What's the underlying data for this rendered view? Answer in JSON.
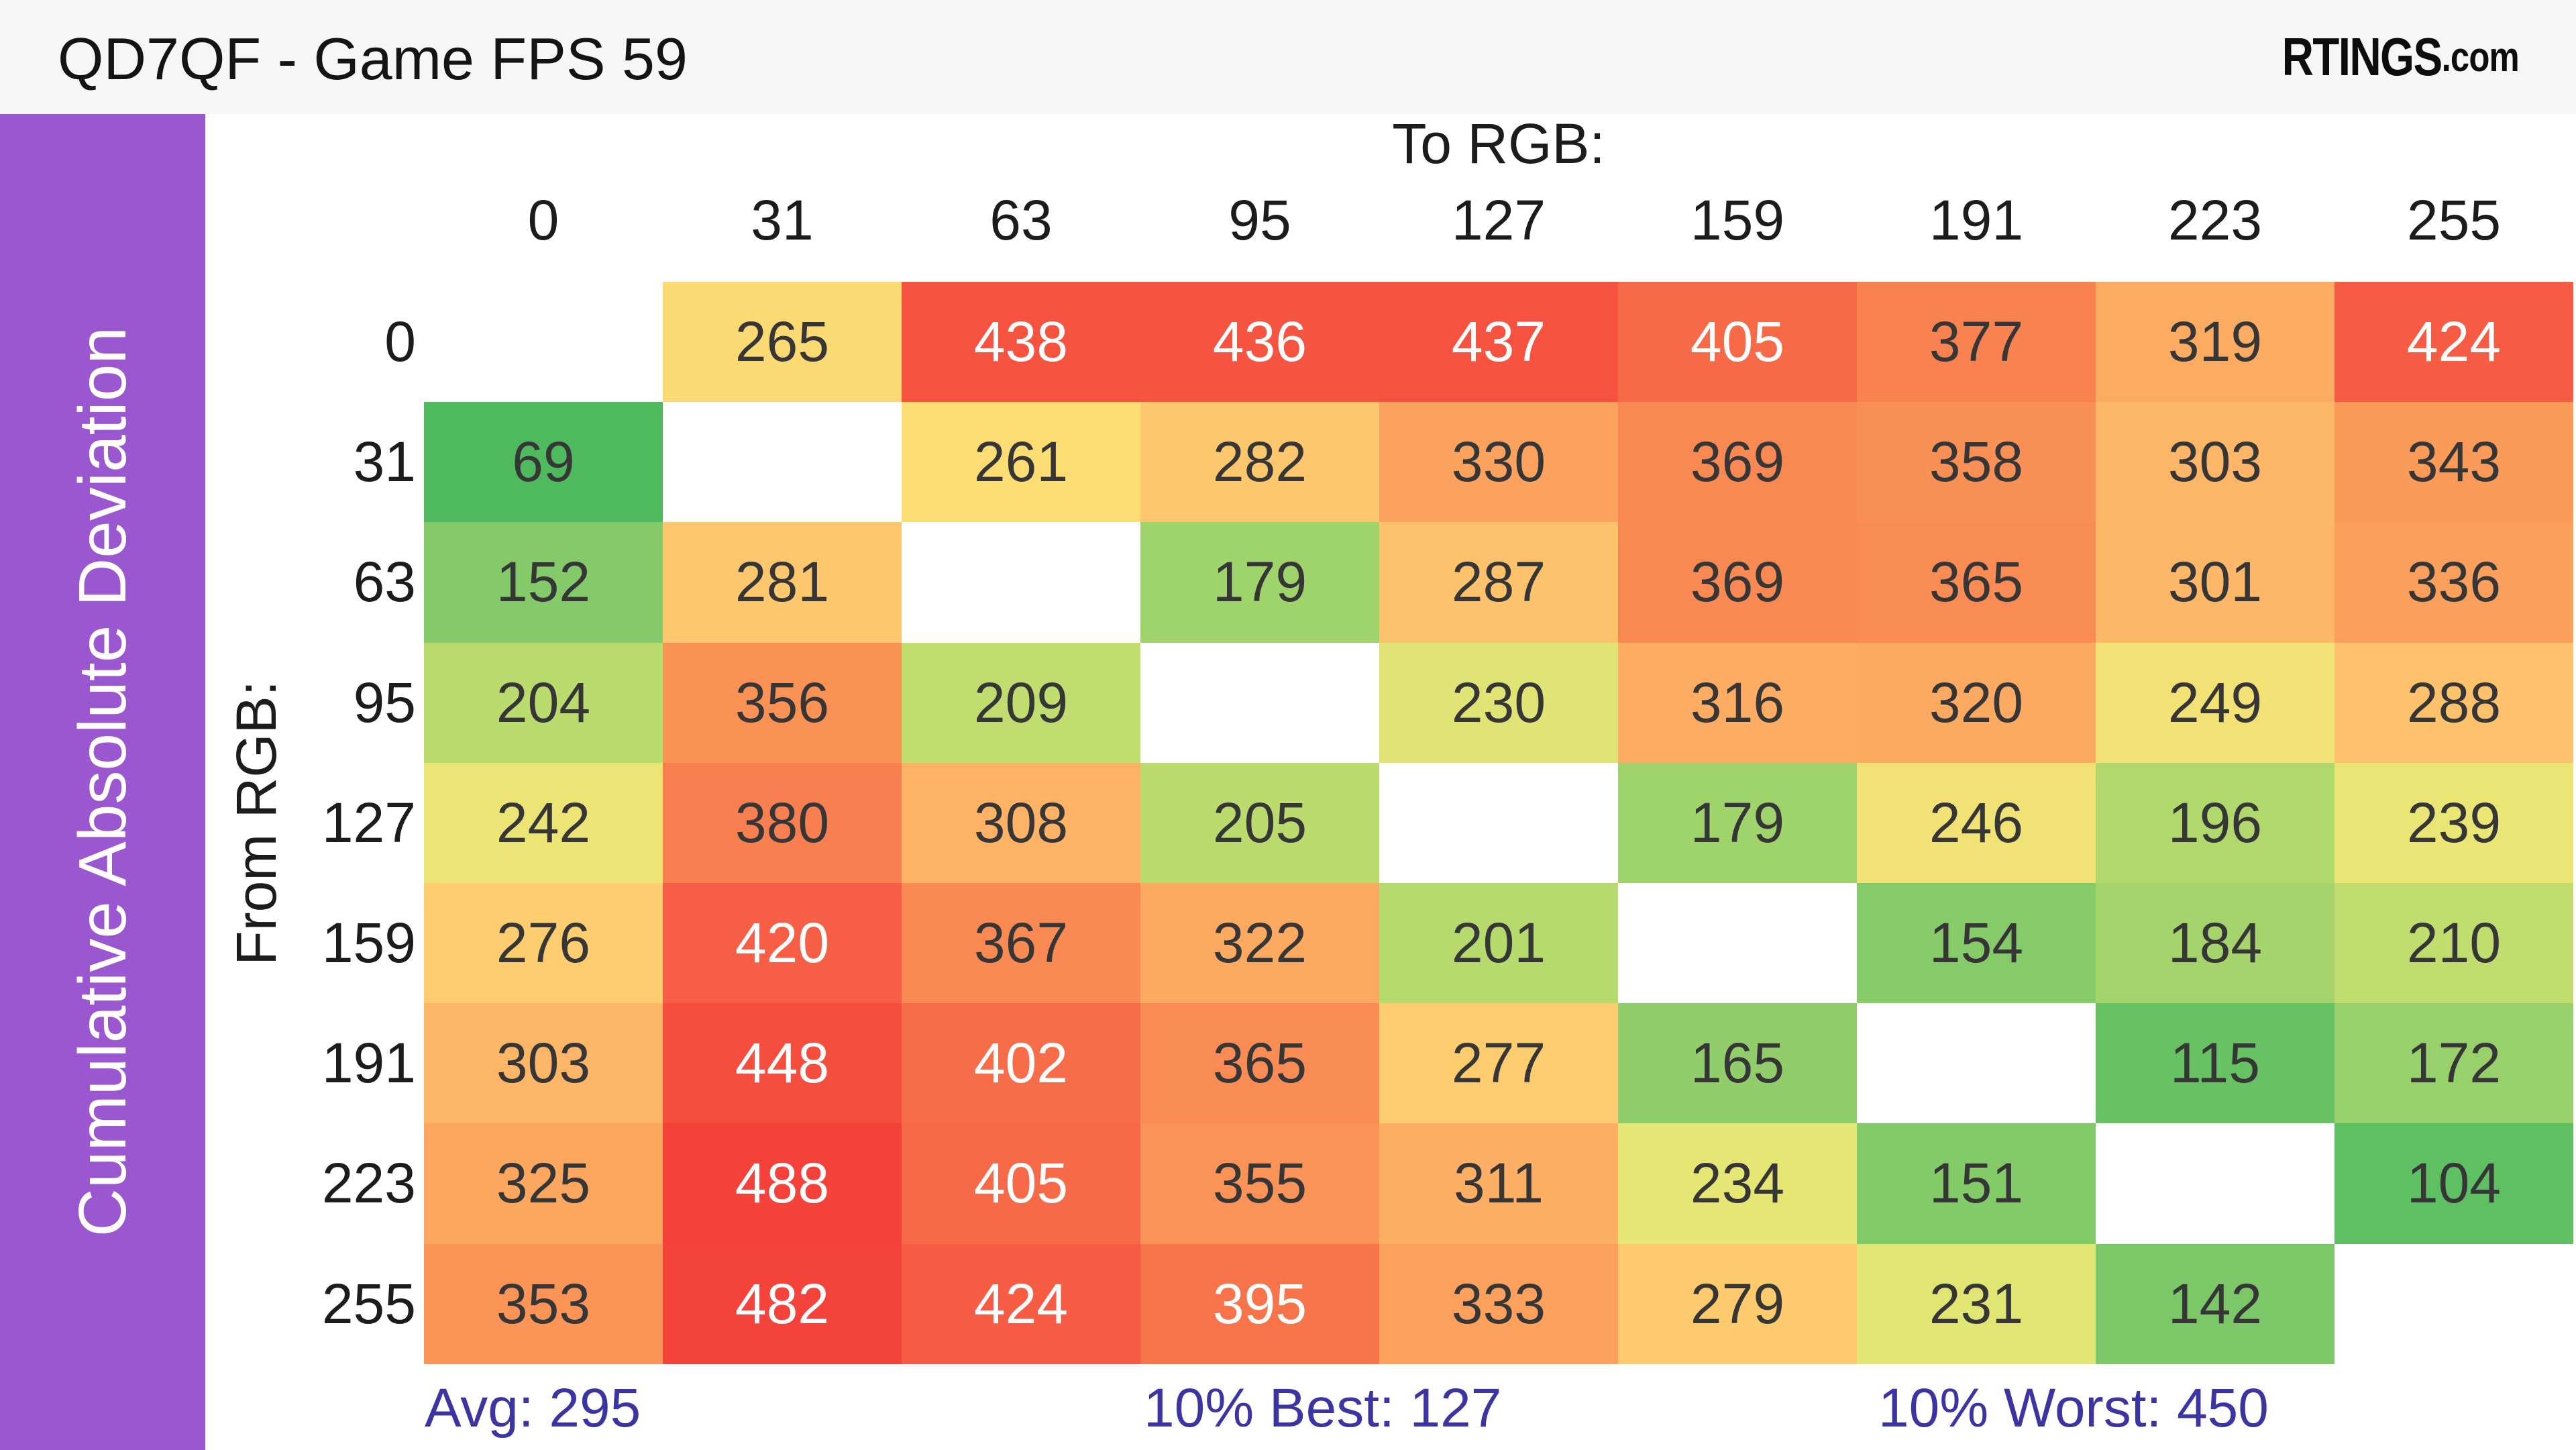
{
  "header": {
    "title": "QD7QF - Game FPS 59",
    "logo_main": "RTINGS",
    "logo_suffix": ".com"
  },
  "sidebar": {
    "label": "Cumulative Absolute Deviation",
    "color": "#9b57d0"
  },
  "chart_data": {
    "type": "heatmap",
    "title": "QD7QF - Game FPS 59",
    "x_axis_label": "To RGB:",
    "y_axis_label": "From RGB:",
    "columns": [
      "0",
      "31",
      "63",
      "95",
      "127",
      "159",
      "191",
      "223",
      "255"
    ],
    "rows": [
      "0",
      "31",
      "63",
      "95",
      "127",
      "159",
      "191",
      "223",
      "255"
    ],
    "values": [
      [
        null,
        265,
        438,
        436,
        437,
        405,
        377,
        319,
        424
      ],
      [
        69,
        null,
        261,
        282,
        330,
        369,
        358,
        303,
        343
      ],
      [
        152,
        281,
        null,
        179,
        287,
        369,
        365,
        301,
        336
      ],
      [
        204,
        356,
        209,
        null,
        230,
        316,
        320,
        249,
        288
      ],
      [
        242,
        380,
        308,
        205,
        null,
        179,
        246,
        196,
        239
      ],
      [
        276,
        420,
        367,
        322,
        201,
        null,
        154,
        184,
        210
      ],
      [
        303,
        448,
        402,
        365,
        277,
        165,
        null,
        115,
        172
      ],
      [
        325,
        488,
        405,
        355,
        311,
        234,
        151,
        null,
        104
      ],
      [
        353,
        482,
        424,
        395,
        333,
        279,
        231,
        142,
        null
      ]
    ],
    "colormap": {
      "stops": [
        [
          60,
          "#4bb95c"
        ],
        [
          105,
          "#5fc063"
        ],
        [
          155,
          "#86cb6a"
        ],
        [
          205,
          "#bbdb6e"
        ],
        [
          235,
          "#e7e675"
        ],
        [
          262,
          "#fcdd74"
        ],
        [
          278,
          "#fdcb6e"
        ],
        [
          305,
          "#fdb467"
        ],
        [
          335,
          "#fba05c"
        ],
        [
          365,
          "#f98c54"
        ],
        [
          390,
          "#f7774b"
        ],
        [
          415,
          "#f66146"
        ],
        [
          445,
          "#f54e3e"
        ],
        [
          500,
          "#f43d38"
        ]
      ],
      "white_text_threshold": 390,
      "diagonal_color": "#ffffff"
    },
    "legend_position": "none",
    "grid": false
  },
  "stats": {
    "avg_label": "Avg: 295",
    "best_label": "10% Best: 127",
    "worst_label": "10% Worst: 450",
    "color": "#3b35a3"
  }
}
